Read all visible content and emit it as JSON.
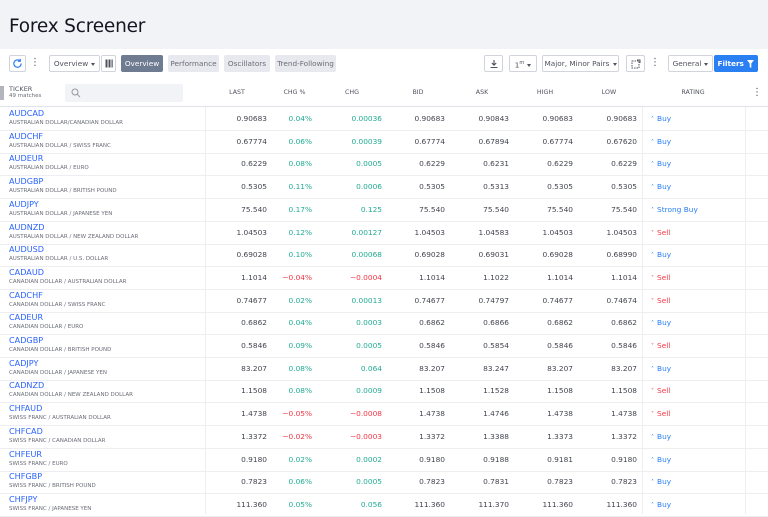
{
  "page": {
    "title": "Forex Screener"
  },
  "toolbar": {
    "view_select": "Overview",
    "tabs": [
      "Overview",
      "Performance",
      "Oscillators",
      "Trend-Following"
    ],
    "interval": "1",
    "interval_suffix": "m",
    "filter_preset": "Major, Minor Pairs",
    "general": "General",
    "filters": "Filters",
    "icons": [
      "refresh-icon",
      "more-icon",
      "columns-icon",
      "download-icon",
      "alert-icon",
      "more-icon",
      "funnel-icon"
    ]
  },
  "table": {
    "ticker_header": "TICKER",
    "matches": "49 matches",
    "columns": [
      "LAST",
      "CHG %",
      "CHG",
      "BID",
      "ASK",
      "HIGH",
      "LOW",
      "RATING"
    ],
    "rows": [
      {
        "sym": "AUDCAD",
        "desc": "AUSTRALIAN DOLLAR/CANADIAN DOLLAR",
        "last": "0.90683",
        "chgp": "0.04%",
        "chg": "0.00036",
        "bid": "0.90683",
        "ask": "0.90843",
        "high": "0.90683",
        "low": "0.90683",
        "rating": "Buy",
        "dir": "up"
      },
      {
        "sym": "AUDCHF",
        "desc": "AUSTRALIAN DOLLAR / SWISS FRANC",
        "last": "0.67774",
        "chgp": "0.06%",
        "chg": "0.00039",
        "bid": "0.67774",
        "ask": "0.67894",
        "high": "0.67774",
        "low": "0.67620",
        "rating": "Buy",
        "dir": "up"
      },
      {
        "sym": "AUDEUR",
        "desc": "AUSTRALIAN DOLLAR / EURO",
        "last": "0.6229",
        "chgp": "0.08%",
        "chg": "0.0005",
        "bid": "0.6229",
        "ask": "0.6231",
        "high": "0.6229",
        "low": "0.6229",
        "rating": "Buy",
        "dir": "up"
      },
      {
        "sym": "AUDGBP",
        "desc": "AUSTRALIAN DOLLAR / BRITISH POUND",
        "last": "0.5305",
        "chgp": "0.11%",
        "chg": "0.0006",
        "bid": "0.5305",
        "ask": "0.5313",
        "high": "0.5305",
        "low": "0.5305",
        "rating": "Buy",
        "dir": "up"
      },
      {
        "sym": "AUDJPY",
        "desc": "AUSTRALIAN DOLLAR / JAPANESE YEN",
        "last": "75.540",
        "chgp": "0.17%",
        "chg": "0.125",
        "bid": "75.540",
        "ask": "75.540",
        "high": "75.540",
        "low": "75.540",
        "rating": "Strong Buy",
        "dir": "up"
      },
      {
        "sym": "AUDNZD",
        "desc": "AUSTRALIAN DOLLAR / NEW ZEALAND DOLLAR",
        "last": "1.04503",
        "chgp": "0.12%",
        "chg": "0.00127",
        "bid": "1.04503",
        "ask": "1.04583",
        "high": "1.04503",
        "low": "1.04503",
        "rating": "Sell",
        "dir": "down"
      },
      {
        "sym": "AUDUSD",
        "desc": "AUSTRALIAN DOLLAR / U.S. DOLLAR",
        "last": "0.69028",
        "chgp": "0.10%",
        "chg": "0.00068",
        "bid": "0.69028",
        "ask": "0.69031",
        "high": "0.69028",
        "low": "0.68990",
        "rating": "Buy",
        "dir": "up"
      },
      {
        "sym": "CADAUD",
        "desc": "CANADIAN DOLLAR / AUSTRALIAN DOLLAR",
        "last": "1.1014",
        "chgp": "−0.04%",
        "chg": "−0.0004",
        "bid": "1.1014",
        "ask": "1.1022",
        "high": "1.1014",
        "low": "1.1014",
        "rating": "Sell",
        "dir": "down"
      },
      {
        "sym": "CADCHF",
        "desc": "CANADIAN DOLLAR / SWISS FRANC",
        "last": "0.74677",
        "chgp": "0.02%",
        "chg": "0.00013",
        "bid": "0.74677",
        "ask": "0.74797",
        "high": "0.74677",
        "low": "0.74674",
        "rating": "Sell",
        "dir": "down"
      },
      {
        "sym": "CADEUR",
        "desc": "CANADIAN DOLLAR / EURO",
        "last": "0.6862",
        "chgp": "0.04%",
        "chg": "0.0003",
        "bid": "0.6862",
        "ask": "0.6866",
        "high": "0.6862",
        "low": "0.6862",
        "rating": "Buy",
        "dir": "up"
      },
      {
        "sym": "CADGBP",
        "desc": "CANADIAN DOLLAR / BRITISH POUND",
        "last": "0.5846",
        "chgp": "0.09%",
        "chg": "0.0005",
        "bid": "0.5846",
        "ask": "0.5854",
        "high": "0.5846",
        "low": "0.5846",
        "rating": "Sell",
        "dir": "down"
      },
      {
        "sym": "CADJPY",
        "desc": "CANADIAN DOLLAR / JAPANESE YEN",
        "last": "83.207",
        "chgp": "0.08%",
        "chg": "0.064",
        "bid": "83.207",
        "ask": "83.247",
        "high": "83.207",
        "low": "83.207",
        "rating": "Buy",
        "dir": "up"
      },
      {
        "sym": "CADNZD",
        "desc": "CANADIAN DOLLAR / NEW ZEALAND DOLLAR",
        "last": "1.1508",
        "chgp": "0.08%",
        "chg": "0.0009",
        "bid": "1.1508",
        "ask": "1.1528",
        "high": "1.1508",
        "low": "1.1508",
        "rating": "Sell",
        "dir": "down"
      },
      {
        "sym": "CHFAUD",
        "desc": "SWISS FRANC / AUSTRALIAN DOLLAR",
        "last": "1.4738",
        "chgp": "−0.05%",
        "chg": "−0.0008",
        "bid": "1.4738",
        "ask": "1.4746",
        "high": "1.4738",
        "low": "1.4738",
        "rating": "Sell",
        "dir": "down"
      },
      {
        "sym": "CHFCAD",
        "desc": "SWISS FRANC / CANADIAN DOLLAR",
        "last": "1.3372",
        "chgp": "−0.02%",
        "chg": "−0.0003",
        "bid": "1.3372",
        "ask": "1.3388",
        "high": "1.3373",
        "low": "1.3372",
        "rating": "Buy",
        "dir": "up"
      },
      {
        "sym": "CHFEUR",
        "desc": "SWISS FRANC / EURO",
        "last": "0.9180",
        "chgp": "0.02%",
        "chg": "0.0002",
        "bid": "0.9180",
        "ask": "0.9188",
        "high": "0.9181",
        "low": "0.9180",
        "rating": "Buy",
        "dir": "up"
      },
      {
        "sym": "CHFGBP",
        "desc": "SWISS FRANC / BRITISH POUND",
        "last": "0.7823",
        "chgp": "0.06%",
        "chg": "0.0005",
        "bid": "0.7823",
        "ask": "0.7831",
        "high": "0.7823",
        "low": "0.7823",
        "rating": "Buy",
        "dir": "up"
      },
      {
        "sym": "CHFJPY",
        "desc": "SWISS FRANC / JAPANESE YEN",
        "last": "111.360",
        "chgp": "0.05%",
        "chg": "0.056",
        "bid": "111.360",
        "ask": "111.370",
        "high": "111.360",
        "low": "111.360",
        "rating": "Buy",
        "dir": "up"
      }
    ]
  },
  "colors": {
    "up": "#22ab94",
    "down": "#f23645",
    "accent": "#2a7ff3",
    "symbol": "#2962ff"
  }
}
